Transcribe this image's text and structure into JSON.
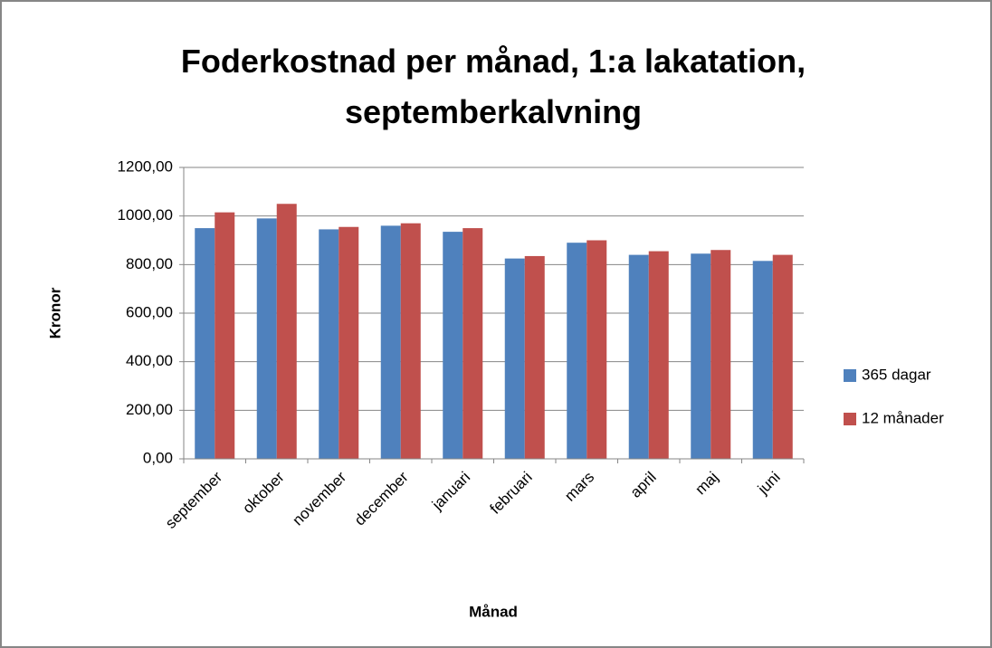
{
  "chart_data": {
    "type": "bar",
    "title": "Foderkostnad per månad, 1:a lakatation, septemberkalvning",
    "x_label": "Månad",
    "y_label": "Kronor",
    "categories": [
      "september",
      "oktober",
      "november",
      "december",
      "januari",
      "februari",
      "mars",
      "april",
      "maj",
      "juni"
    ],
    "series": [
      {
        "name": "365 dagar",
        "color": "#4f81bd",
        "values": [
          950,
          990,
          945,
          960,
          935,
          825,
          890,
          840,
          845,
          815
        ]
      },
      {
        "name": "12 månader",
        "color": "#c0504d",
        "values": [
          1015,
          1050,
          955,
          970,
          950,
          835,
          900,
          855,
          860,
          840
        ]
      }
    ],
    "ylim": [
      0,
      1200
    ],
    "yticks": [
      {
        "value": 0,
        "label": "0,00"
      },
      {
        "value": 200,
        "label": "200,00"
      },
      {
        "value": 400,
        "label": "400,00"
      },
      {
        "value": 600,
        "label": "600,00"
      },
      {
        "value": 800,
        "label": "800,00"
      },
      {
        "value": 1000,
        "label": "1000,00"
      },
      {
        "value": 1200,
        "label": "1200,00"
      }
    ],
    "grid": true,
    "legend": "right"
  }
}
